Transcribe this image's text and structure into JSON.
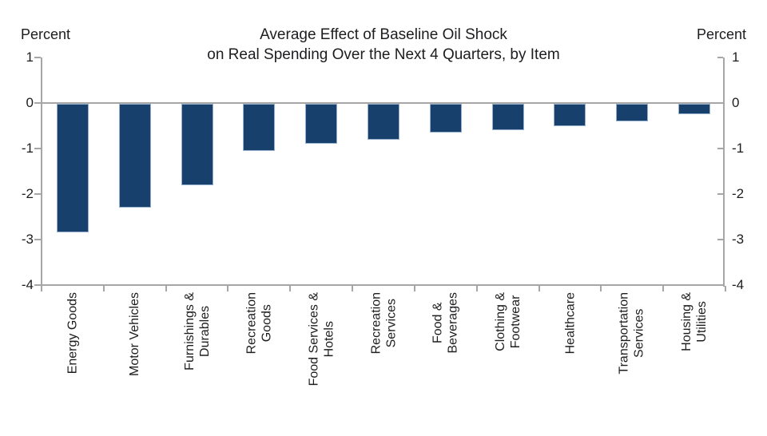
{
  "chart_data": {
    "type": "bar",
    "title": "Average Effect of Baseline Oil Shock on Real Spending Over the Next 4 Quarters, by Item",
    "title_lines": [
      "Average Effect of Baseline Oil Shock",
      "on Real Spending Over the Next 4 Quarters, by Item"
    ],
    "unit_label_left": "Percent",
    "unit_label_right": "Percent",
    "ylim": [
      -4,
      1
    ],
    "yticks": [
      1,
      0,
      -1,
      -2,
      -3,
      -4
    ],
    "grid": false,
    "legend": "none",
    "orientation": "vertical-negative-bars",
    "categories": [
      "Energy Goods",
      "Motor Vehicles",
      "Furnishings & Durables",
      "Recreation Goods",
      "Food Services & Hotels",
      "Recreation Services",
      "Food & Beverages",
      "Clothing & Footwear",
      "Healthcare",
      "Transportation Services",
      "Housing & Utilities"
    ],
    "category_label_lines": [
      [
        "Energy Goods"
      ],
      [
        "Motor Vehicles"
      ],
      [
        "Furnishings &",
        "Durables"
      ],
      [
        "Recreation",
        "Goods"
      ],
      [
        "Food Services &",
        "Hotels"
      ],
      [
        "Recreation",
        "Services"
      ],
      [
        "Food &",
        "Beverages"
      ],
      [
        "Clothing &",
        "Footwear"
      ],
      [
        "Healthcare"
      ],
      [
        "Transportation",
        "Services"
      ],
      [
        "Housing &",
        "Utilities"
      ]
    ],
    "values": [
      -2.85,
      -2.3,
      -1.8,
      -1.05,
      -0.9,
      -0.8,
      -0.65,
      -0.6,
      -0.5,
      -0.4,
      -0.25
    ],
    "bar_color": "#17406d",
    "bar_border_color": "#95b0cd",
    "axis_color": "#a6a6a6",
    "text_color": "#1d1d20"
  }
}
